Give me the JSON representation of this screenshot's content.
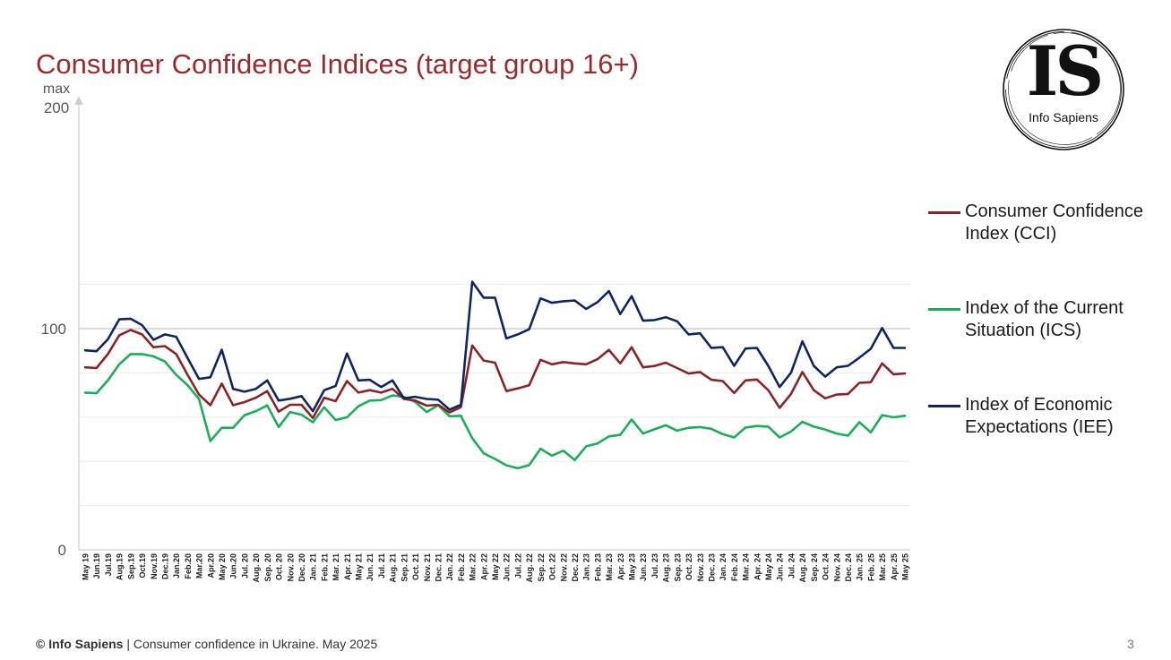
{
  "header": {
    "title": "Consumer Confidence Indices (target group 16+)"
  },
  "logo": {
    "mark": "IS",
    "name": "Info Sapiens"
  },
  "footer": {
    "brand": "© Info Sapiens",
    "separator": " | ",
    "text": "Consumer confidence in Ukraine. May 2025",
    "page": "3"
  },
  "chart_data": {
    "type": "line",
    "title": "",
    "xlabel": "",
    "ylabel": "",
    "ylim": [
      0,
      200
    ],
    "y_ticks": [
      {
        "value": 200,
        "label": "200",
        "prefix": "max"
      },
      {
        "value": 100,
        "label": "100"
      },
      {
        "value": 0,
        "label": "0"
      }
    ],
    "gridlines": [
      20,
      40,
      60,
      80,
      100,
      120
    ],
    "legend_position": "right",
    "categories": [
      "May 19",
      "Jun.19",
      "Jul.19",
      "Aug.19",
      "Sep.19",
      "Oct.19",
      "Nov.19",
      "Dec.19",
      "Jan.20",
      "Feb.20",
      "Mar.20",
      "Apr.20",
      "May 20",
      "Jun.20",
      "Jul. 20",
      "Aug. 20",
      "Sep. 20",
      "Oct. 20",
      "Nov. 20",
      "Dec. 20",
      "Jan. 21",
      "Feb. 21",
      "Mar. 21",
      "Apr. 21",
      "May 21",
      "Jun. 21",
      "Jul. 21",
      "Aug. 21",
      "Sep. 21",
      "Oct. 21",
      "Nov. 21",
      "Dec. 21",
      "Jan. 22",
      "Feb. 22",
      "Mar. 22",
      "Apr. 22",
      "May 22",
      "Jun. 22",
      "Jul. 22",
      "Aug. 22",
      "Sep. 22",
      "Oct. 22",
      "Nov. 22",
      "Dec. 22",
      "Jan. 23",
      "Feb. 23",
      "Mar. 23",
      "Apr. 23",
      "May 23",
      "Jun. 23",
      "Jul. 23",
      "Aug. 23",
      "Sep. 23",
      "Oct. 23",
      "Nov. 23",
      "Dec. 23",
      "Jan. 24",
      "Feb. 24",
      "Mar. 24",
      "Apr. 24",
      "May 24",
      "Jun. 24",
      "Jul. 24",
      "Aug. 24",
      "Sep. 24",
      "Oct. 24",
      "Nov. 24",
      "Dec. 24",
      "Jan. 25",
      "Feb. 25",
      "Mar. 25",
      "Apr. 25",
      "May 25"
    ],
    "series": [
      {
        "name": "Consumer Confidence Index (CCI)",
        "color": "#8b2328",
        "values": [
          82.5,
          82.2,
          88.5,
          97,
          99.4,
          97.4,
          91.6,
          92.1,
          88.5,
          79.1,
          70.2,
          65.4,
          75.2,
          65.4,
          66.8,
          68.8,
          71.8,
          62.5,
          65.6,
          65.6,
          59.6,
          68.8,
          67.2,
          76.3,
          71.1,
          72.2,
          71.1,
          72.8,
          68.2,
          67.5,
          65.2,
          65.6,
          62.1,
          64.5,
          92.4,
          85.6,
          84.6,
          71.8,
          73,
          74.4,
          85.9,
          83.9,
          84.9,
          84.3,
          83.9,
          86.2,
          90.4,
          84.3,
          91.6,
          82.5,
          83.1,
          84.6,
          82.2,
          79.7,
          80.4,
          76.9,
          76.3,
          70.9,
          76.6,
          77,
          72.2,
          64.2,
          70.5,
          80.4,
          72.2,
          68.5,
          70.2,
          70.5,
          75.5,
          75.8,
          84.3,
          79.4,
          79.7
        ]
      },
      {
        "name": "Index of the Current Situation (ICS)",
        "color": "#1aae5a",
        "values": [
          71.1,
          70.8,
          76.6,
          83.9,
          88.5,
          88.5,
          87.5,
          85.2,
          79.1,
          74.4,
          68.2,
          49.2,
          55.2,
          55.2,
          60.9,
          62.7,
          65.3,
          55.5,
          62.3,
          61.1,
          57.7,
          64.5,
          58.7,
          59.9,
          64.9,
          67.5,
          67.7,
          69.8,
          69.2,
          66.8,
          62.3,
          65.4,
          60.4,
          60.6,
          50.5,
          43.7,
          41.1,
          38.2,
          36.9,
          38.3,
          45.7,
          42.6,
          44.8,
          40.6,
          46.8,
          48.1,
          51.3,
          52,
          58.9,
          52.6,
          54.5,
          56.3,
          53.9,
          55.2,
          55.5,
          54.7,
          52.3,
          50.8,
          55.3,
          56,
          55.7,
          50.8,
          53.5,
          57.9,
          55.7,
          54.4,
          52.6,
          51.6,
          57.7,
          53.1,
          60.9,
          59.9,
          60.6
        ]
      },
      {
        "name": "Index of Economic Expectations (IEE)",
        "color": "#0f2660",
        "values": [
          90.2,
          89.8,
          95.2,
          104.2,
          104.5,
          101.6,
          95,
          97.4,
          96.3,
          86.7,
          77.3,
          78,
          90.5,
          72.8,
          71.5,
          72.8,
          76.6,
          67.5,
          68.3,
          69.5,
          62.7,
          72.2,
          74.1,
          88.8,
          76.6,
          76.9,
          73.6,
          76.6,
          68.5,
          69.2,
          68.2,
          67.9,
          63.4,
          65.6,
          121.2,
          114,
          114,
          95.6,
          97.4,
          99.7,
          113.7,
          111.7,
          112.4,
          112.7,
          108.9,
          112,
          117,
          106.6,
          114.7,
          103.6,
          103.9,
          105.2,
          103.3,
          97.4,
          97.9,
          91.3,
          91.6,
          83.2,
          91,
          91.3,
          83.2,
          73.6,
          80.1,
          94.3,
          83.2,
          78.3,
          82.5,
          83.2,
          86.9,
          90.9,
          100.3,
          91.3,
          91.3
        ]
      }
    ]
  }
}
